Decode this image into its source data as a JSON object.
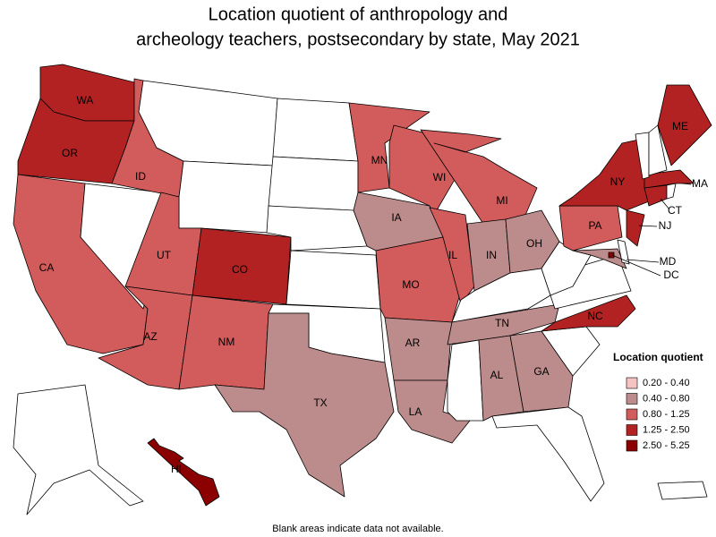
{
  "header": {
    "title_lines": [
      "Location quotient of anthropology and",
      "archeology teachers, postsecondary by state, May 2021"
    ]
  },
  "legend": {
    "title": "Location quotient",
    "items": [
      {
        "label": "0.20 - 0.40",
        "color": "#f6c3c3",
        "states": []
      },
      {
        "label": "0.40 - 0.80",
        "color": "#bc8c8c",
        "states": [
          "TX",
          "IA",
          "AR",
          "LA",
          "IN",
          "OH",
          "TN",
          "AL",
          "GA",
          "MD"
        ]
      },
      {
        "label": "0.80 - 1.25",
        "color": "#d25b5b",
        "states": [
          "CA",
          "ID",
          "UT",
          "AZ",
          "NM",
          "MN",
          "MO",
          "WI",
          "IL",
          "MI",
          "PA"
        ]
      },
      {
        "label": "1.25 - 2.50",
        "color": "#b22222",
        "states": [
          "WA",
          "OR",
          "CO",
          "NC",
          "NY",
          "ME",
          "MA",
          "CT",
          "NJ"
        ]
      },
      {
        "label": "2.50 - 5.25",
        "color": "#8b0000",
        "states": [
          "DC",
          "HI"
        ]
      }
    ]
  },
  "footnote": "Blank areas indicate data not available."
}
